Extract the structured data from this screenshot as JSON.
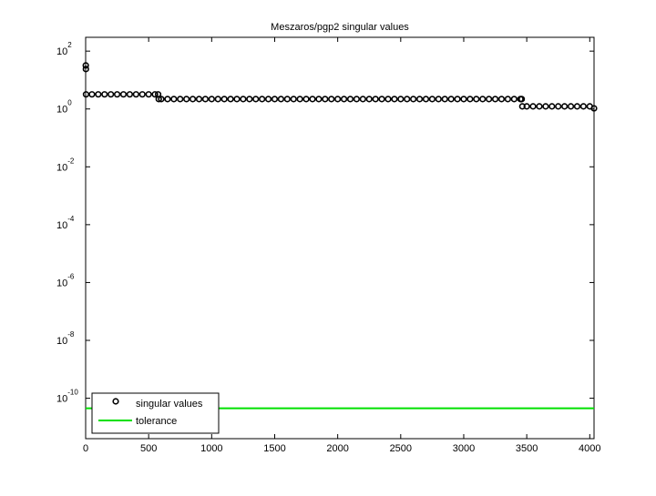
{
  "chart_data": {
    "type": "scatter",
    "title": "Meszaros/pgp2 singular values",
    "log_y": true,
    "xlim": [
      0,
      4034
    ],
    "ylim": [
      4e-12,
      300
    ],
    "xticks": [
      0,
      500,
      1000,
      1500,
      2000,
      2500,
      3000,
      3500,
      4000
    ],
    "yticks": [
      {
        "value": 1e-10,
        "label": "10",
        "exponent": "-10"
      },
      {
        "value": 1e-08,
        "label": "10",
        "exponent": "-8"
      },
      {
        "value": 1e-06,
        "label": "10",
        "exponent": "-6"
      },
      {
        "value": 0.0001,
        "label": "10",
        "exponent": "-4"
      },
      {
        "value": 0.01,
        "label": "10",
        "exponent": "-2"
      },
      {
        "value": 1,
        "label": "10",
        "exponent": "0"
      },
      {
        "value": 100,
        "label": "10",
        "exponent": "2"
      }
    ],
    "legend": "lower left",
    "series": [
      {
        "name": "singular values",
        "color": "#000000",
        "marker": "o",
        "x": [
          1,
          2,
          3,
          50,
          100,
          150,
          200,
          250,
          300,
          350,
          400,
          450,
          500,
          550,
          575,
          580,
          600,
          650,
          700,
          750,
          800,
          850,
          900,
          950,
          1000,
          1050,
          1100,
          1150,
          1200,
          1250,
          1300,
          1350,
          1400,
          1450,
          1500,
          1550,
          1600,
          1650,
          1700,
          1750,
          1800,
          1850,
          1900,
          1950,
          2000,
          2050,
          2100,
          2150,
          2200,
          2250,
          2300,
          2350,
          2400,
          2450,
          2500,
          2550,
          2600,
          2650,
          2700,
          2750,
          2800,
          2850,
          2900,
          2950,
          3000,
          3050,
          3100,
          3150,
          3200,
          3250,
          3300,
          3350,
          3400,
          3450,
          3460,
          3465,
          3500,
          3550,
          3600,
          3650,
          3700,
          3750,
          3800,
          3850,
          3900,
          3950,
          4000,
          4034
        ],
        "values": [
          32,
          24,
          3.2,
          3.2,
          3.2,
          3.2,
          3.2,
          3.2,
          3.2,
          3.2,
          3.2,
          3.2,
          3.2,
          3.2,
          3.2,
          2.2,
          2.2,
          2.2,
          2.2,
          2.2,
          2.2,
          2.2,
          2.2,
          2.2,
          2.2,
          2.2,
          2.2,
          2.2,
          2.2,
          2.2,
          2.2,
          2.2,
          2.2,
          2.2,
          2.2,
          2.2,
          2.2,
          2.2,
          2.2,
          2.2,
          2.2,
          2.2,
          2.2,
          2.2,
          2.2,
          2.2,
          2.2,
          2.2,
          2.2,
          2.2,
          2.2,
          2.2,
          2.2,
          2.2,
          2.2,
          2.2,
          2.2,
          2.2,
          2.2,
          2.2,
          2.2,
          2.2,
          2.2,
          2.2,
          2.2,
          2.2,
          2.2,
          2.2,
          2.2,
          2.2,
          2.2,
          2.2,
          2.2,
          2.2,
          2.2,
          1.23,
          1.23,
          1.23,
          1.23,
          1.23,
          1.23,
          1.23,
          1.23,
          1.23,
          1.23,
          1.23,
          1.23,
          1.05
        ]
      },
      {
        "name": "tolerance",
        "color": "#00e000",
        "marker": "line",
        "x": [
          0,
          4034
        ],
        "values": [
          4.5e-11,
          4.5e-11
        ]
      }
    ]
  }
}
